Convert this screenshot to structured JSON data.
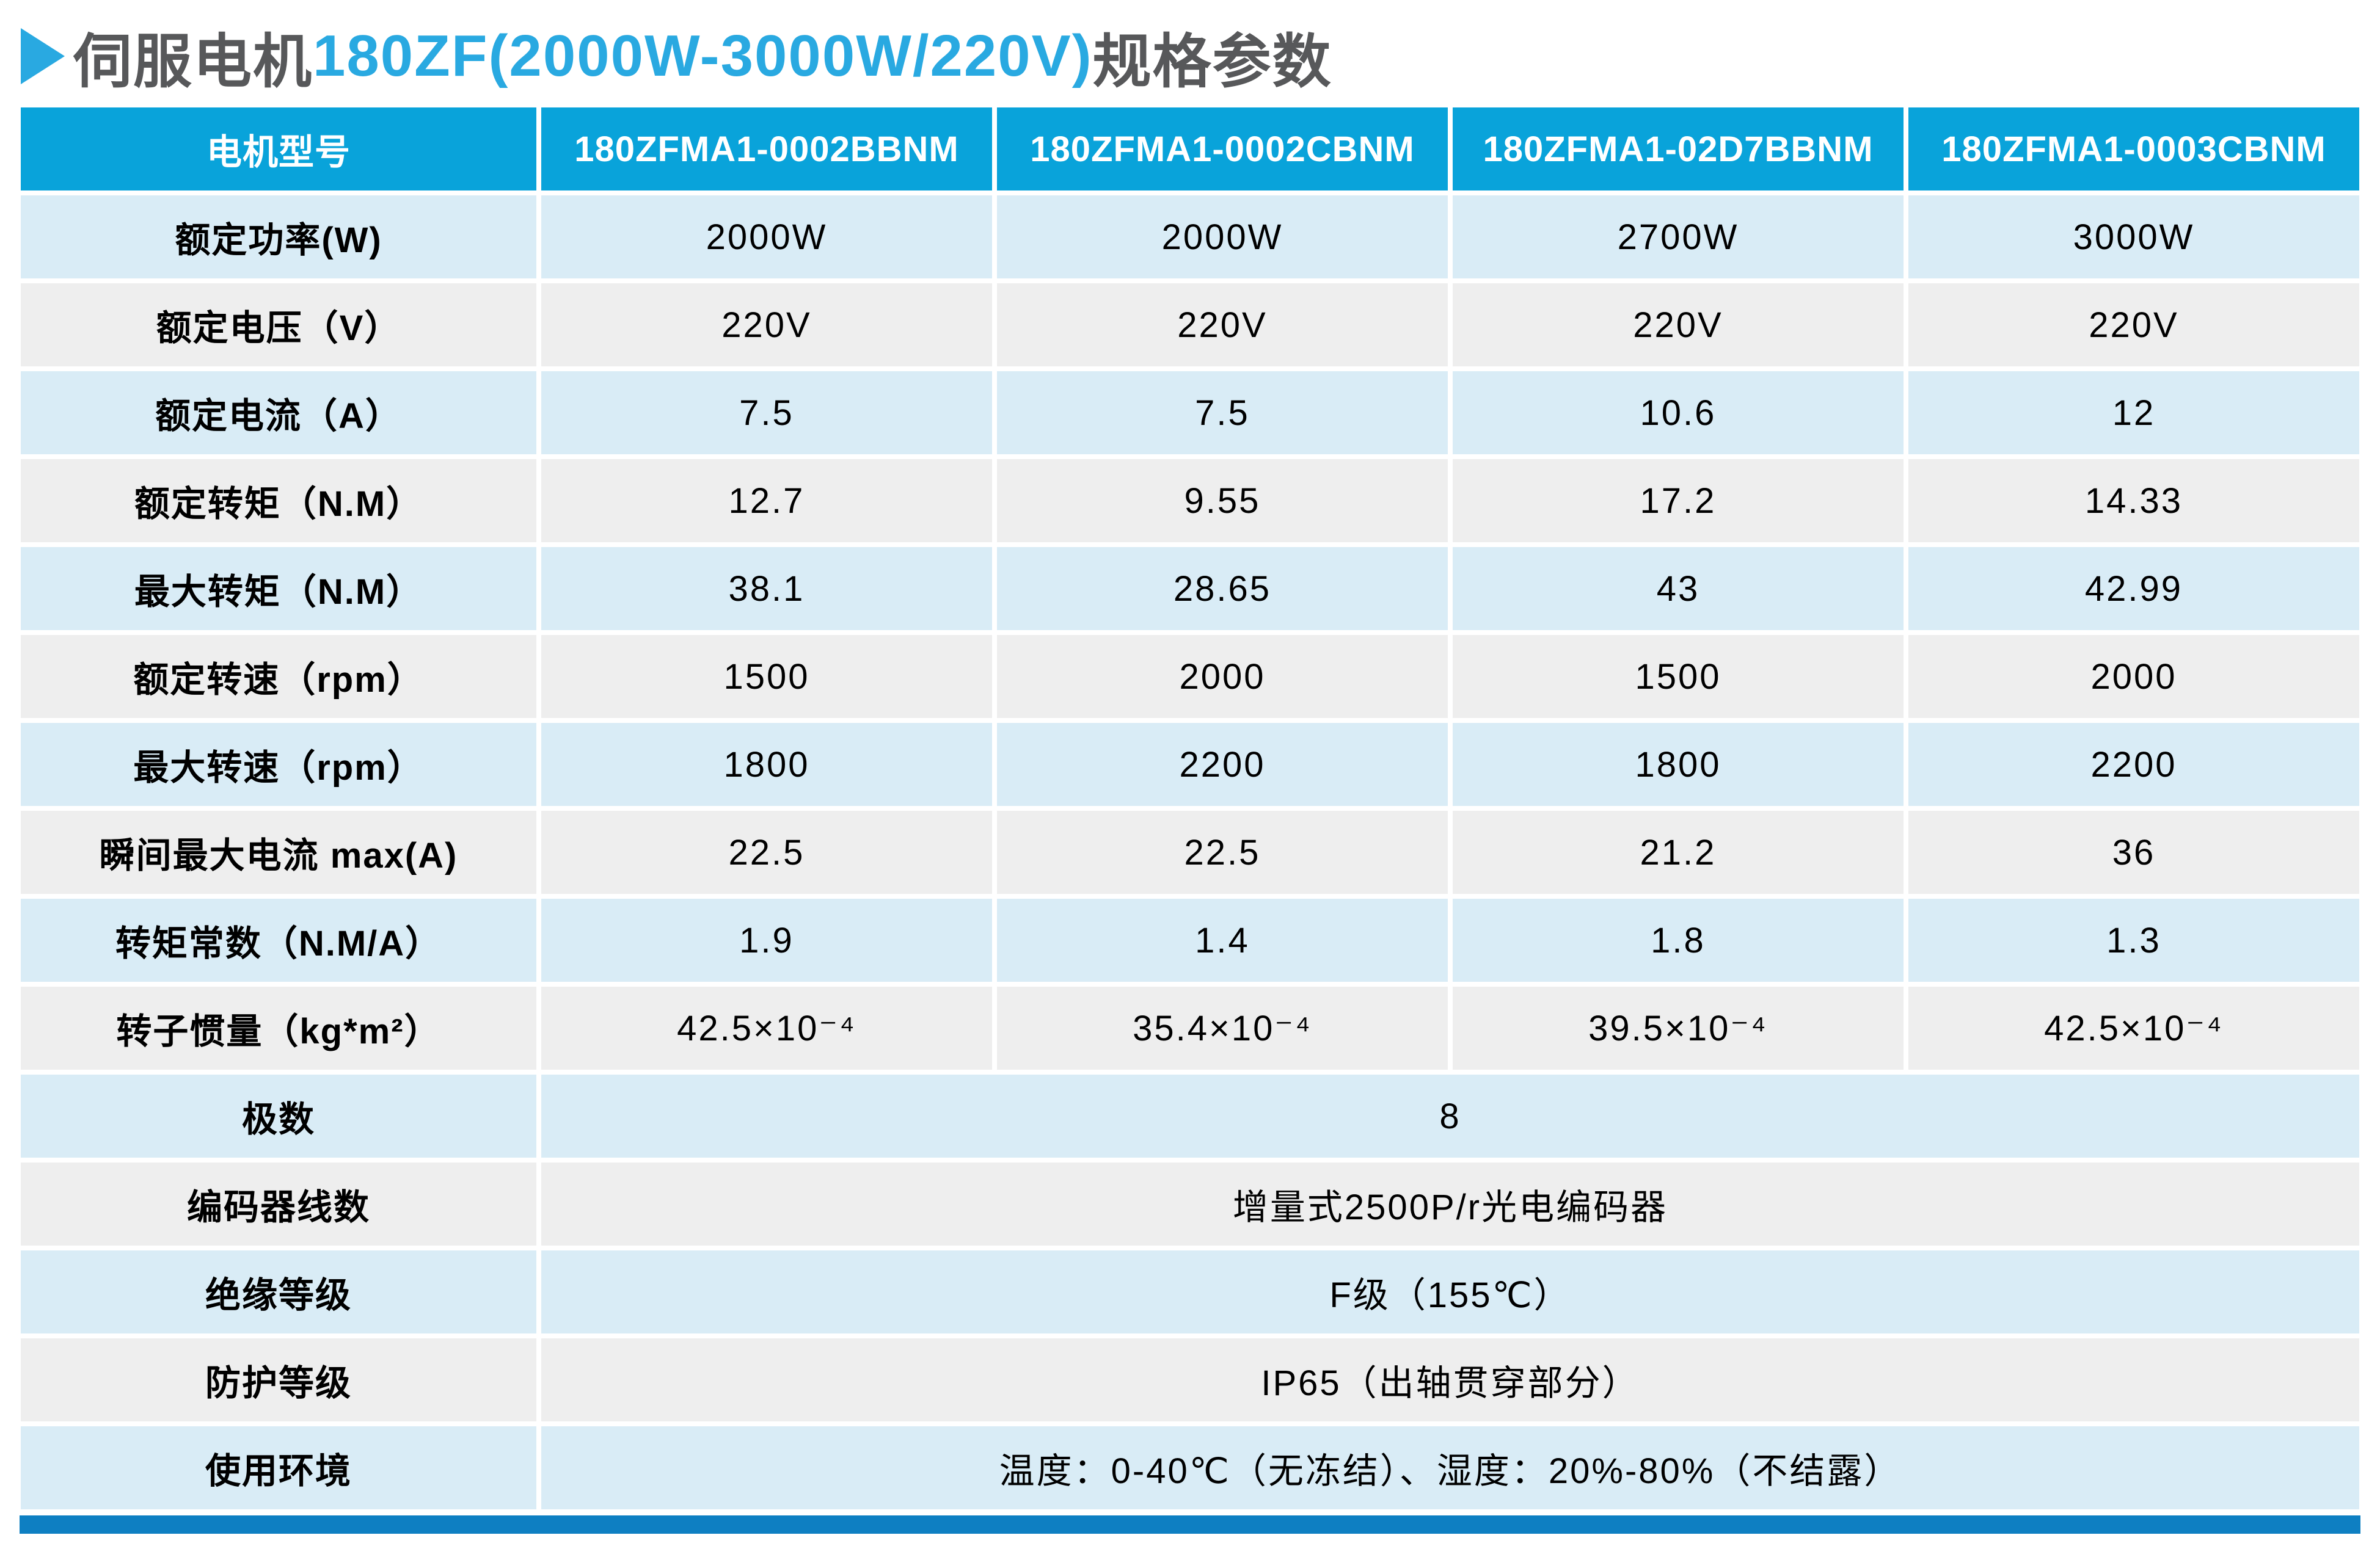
{
  "title": {
    "bullet_icon": "right-triangle-icon",
    "prefix": "伺服电机",
    "highlight": "180ZF(2000W-3000W/220V)",
    "suffix": "规格参数"
  },
  "colors": {
    "header_bg": "#09a3da",
    "row_light_blue": "#d9ecf6",
    "row_gray": "#eeeeee",
    "title_gray": "#57585a",
    "title_blue": "#29a9e1",
    "footer_bar_blue": "#0e7fc2"
  },
  "table": {
    "header": [
      "电机型号",
      "180ZFMA1-0002BBNM",
      "180ZFMA1-0002CBNM",
      "180ZFMA1-02D7BBNM",
      "180ZFMA1-0003CBNM"
    ],
    "rows": [
      {
        "label": "额定功率(W)",
        "values": [
          "2000W",
          "2000W",
          "2700W",
          "3000W"
        ]
      },
      {
        "label": "额定电压（V）",
        "values": [
          "220V",
          "220V",
          "220V",
          "220V"
        ]
      },
      {
        "label": "额定电流（A）",
        "values": [
          "7.5",
          "7.5",
          "10.6",
          "12"
        ]
      },
      {
        "label": "额定转矩（N.M）",
        "values": [
          "12.7",
          "9.55",
          "17.2",
          "14.33"
        ]
      },
      {
        "label": "最大转矩（N.M）",
        "values": [
          "38.1",
          "28.65",
          "43",
          "42.99"
        ]
      },
      {
        "label": "额定转速（rpm）",
        "values": [
          "1500",
          "2000",
          "1500",
          "2000"
        ]
      },
      {
        "label": "最大转速（rpm）",
        "values": [
          "1800",
          "2200",
          "1800",
          "2200"
        ]
      },
      {
        "label": "瞬间最大电流 max(A)",
        "values": [
          "22.5",
          "22.5",
          "21.2",
          "36"
        ]
      },
      {
        "label": "转矩常数（N.M/A）",
        "values": [
          "1.9",
          "1.4",
          "1.8",
          "1.3"
        ]
      },
      {
        "label": "转子惯量（kg*m²）",
        "values": [
          "42.5×10⁻⁴",
          "35.4×10⁻⁴",
          "39.5×10⁻⁴",
          "42.5×10⁻⁴"
        ]
      },
      {
        "label": "极数",
        "merged": "8"
      },
      {
        "label": "编码器线数",
        "merged": "增量式2500P/r光电编码器"
      },
      {
        "label": "绝缘等级",
        "merged": "F级（155℃）"
      },
      {
        "label": "防护等级",
        "merged": "IP65（出轴贯穿部分）"
      },
      {
        "label": "使用环境",
        "merged": "温度：0-40℃（无冻结）、湿度：20%-80%（不结露）"
      }
    ]
  }
}
